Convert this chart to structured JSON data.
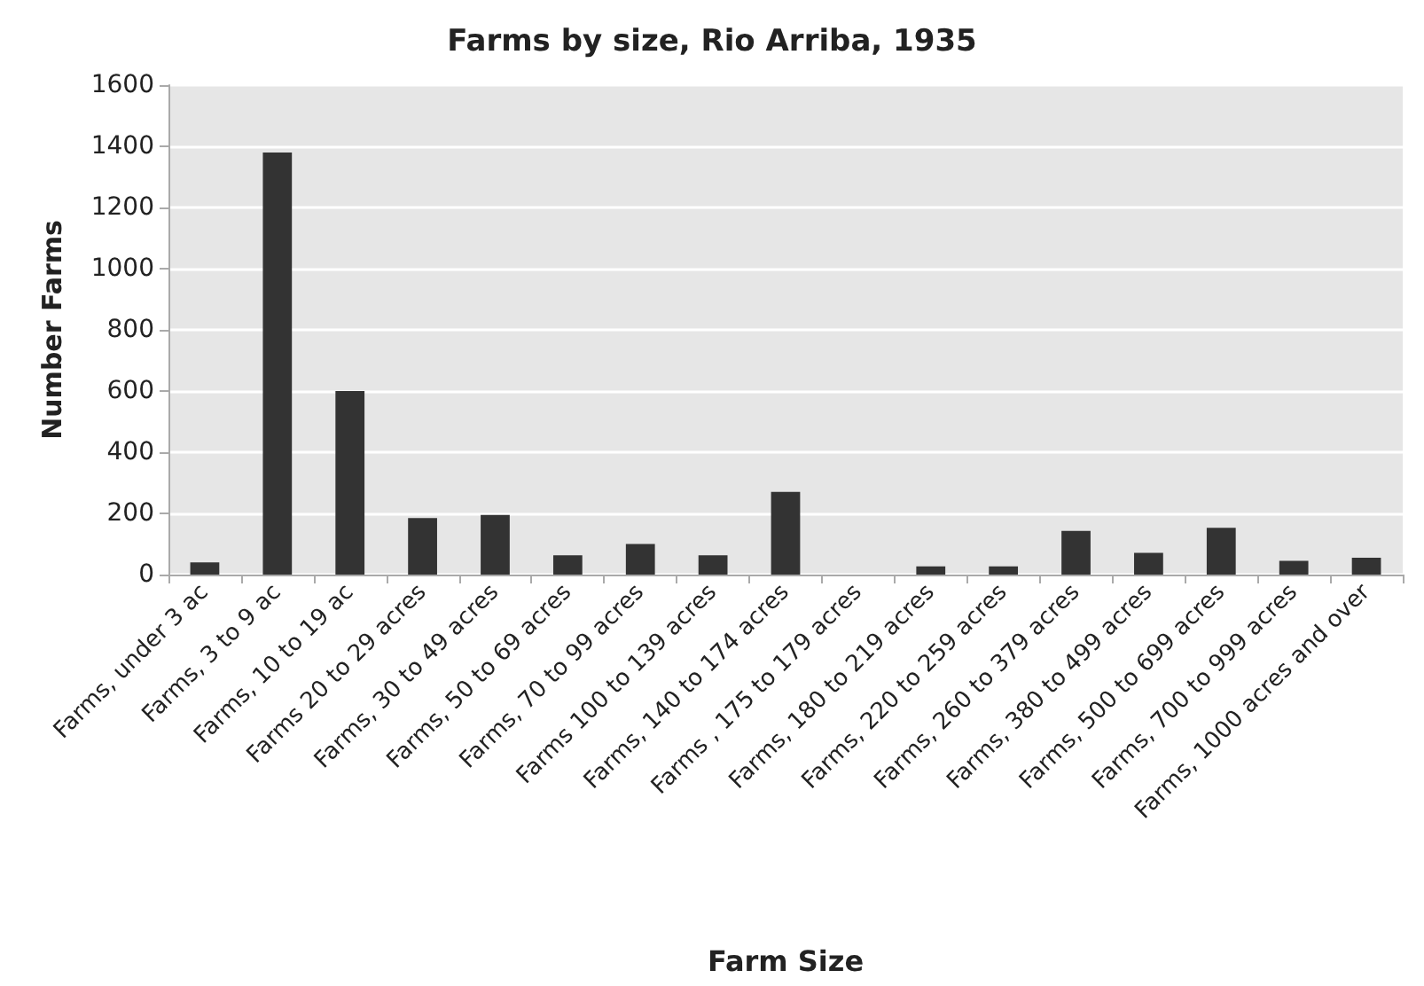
{
  "chart_data": {
    "type": "bar",
    "title": "Farms by size, Rio Arriba, 1935",
    "xlabel": "Farm Size",
    "ylabel": "Number Farms",
    "categories": [
      "Farms, under 3 ac",
      "Farms, 3 to 9 ac",
      "Farms, 10 to 19 ac",
      "Farms 20 to 29 acres",
      "Farms, 30 to 49 acres",
      "Farms, 50 to 69 acres",
      "Farms, 70 to 99 acres",
      "Farms 100 to 139 acres",
      "Farms, 140 to 174 acres",
      "Farms , 175 to 179 acres",
      "Farms, 180 to 219 acres",
      "Farms, 220 to 259 acres",
      "Farms, 260 to 379 acres",
      "Farms, 380 to 499 acres",
      "Farms, 500 to 699 acres",
      "Farms, 700 to 999 acres",
      "Farms, 1000 acres and over"
    ],
    "values": [
      40,
      1380,
      600,
      185,
      195,
      63,
      100,
      63,
      270,
      0,
      27,
      27,
      143,
      71,
      153,
      45,
      55
    ],
    "color": "#333333",
    "ylim": [
      0,
      1600
    ],
    "yticks": [
      0,
      200,
      400,
      600,
      800,
      1000,
      1200,
      1400,
      1600
    ],
    "grid": "y"
  }
}
